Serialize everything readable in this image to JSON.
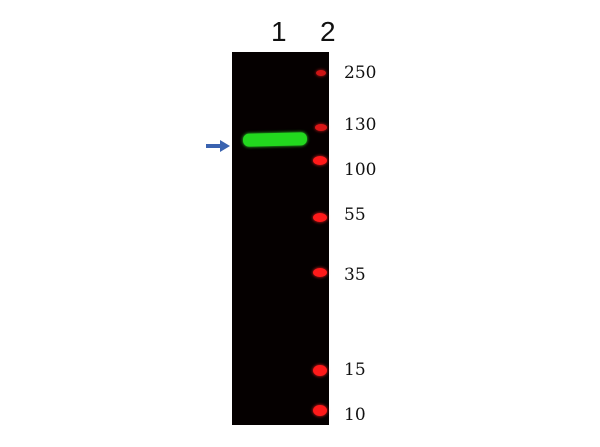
{
  "lanes": [
    "1",
    "2"
  ],
  "markers": [
    {
      "label": "250"
    },
    {
      "label": "130"
    },
    {
      "label": "100"
    },
    {
      "label": "55"
    },
    {
      "label": "35"
    },
    {
      "label": "15"
    },
    {
      "label": "10"
    }
  ],
  "colors": {
    "band": "#22d81e",
    "ladder": "#ff1a1a",
    "arrow": "#3a63b0",
    "blot": "#050000"
  },
  "icons": {
    "arrow": "right-arrow-icon"
  }
}
